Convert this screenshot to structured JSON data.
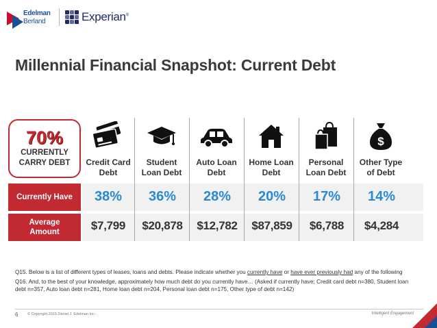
{
  "logos": {
    "edelman_line1": "Edelman",
    "edelman_line2": "Berland",
    "experian": "Experian"
  },
  "title": "Millennial Financial Snapshot: Current Debt",
  "highlight": {
    "percent": "70%",
    "line1": "CURRENTLY",
    "line2": "CARRY DEBT"
  },
  "row_labels": {
    "have": "Currently Have",
    "amount_line1": "Average",
    "amount_line2": "Amount"
  },
  "categories": [
    {
      "line1": "Credit Card",
      "line2": "Debt",
      "icon": "credit-card-icon",
      "pct": "38%",
      "amount": "$7,799"
    },
    {
      "line1": "Student",
      "line2": "Loan Debt",
      "icon": "graduation-cap-icon",
      "pct": "36%",
      "amount": "$20,878"
    },
    {
      "line1": "Auto Loan",
      "line2": "Debt",
      "icon": "car-icon",
      "pct": "28%",
      "amount": "$12,782"
    },
    {
      "line1": "Home Loan",
      "line2": "Debt",
      "icon": "house-icon",
      "pct": "20%",
      "amount": "$87,859"
    },
    {
      "line1": "Personal",
      "line2": "Loan Debt",
      "icon": "shopping-bags-icon",
      "pct": "17%",
      "amount": "$6,788"
    },
    {
      "line1": "Other Type",
      "line2": "of Debt",
      "icon": "money-bag-icon",
      "pct": "14%",
      "amount": "$4,284"
    }
  ],
  "money_bag_symbol": "$",
  "notes": {
    "q15_a": "Q15. Below is a list of different types of leases, loans and debts. Please indicate whether you ",
    "q15_u1": "currently have",
    "q15_b": " or ",
    "q15_u2": "have ever previously had",
    "q15_c": " any of the following",
    "q16": "Q16. And, to the best of your knowledge, approximately how much debt do you currently have… (Asked if currently have; Credit card debt n=380, Student loan debt n=357, Auto loan debt n=281, Home loan debt n=204, Personal loan debt n=175, Other type of debt n=142)"
  },
  "footer": {
    "page": "6",
    "copyright": "© Copyright 2015 Daniel J. Edelman Inc.",
    "tagline": "Intelligent Engagement"
  },
  "colors": {
    "accent_red": "#c22a32",
    "value_blue": "#2a8ad1",
    "band_gray": "#f1f1f1"
  }
}
